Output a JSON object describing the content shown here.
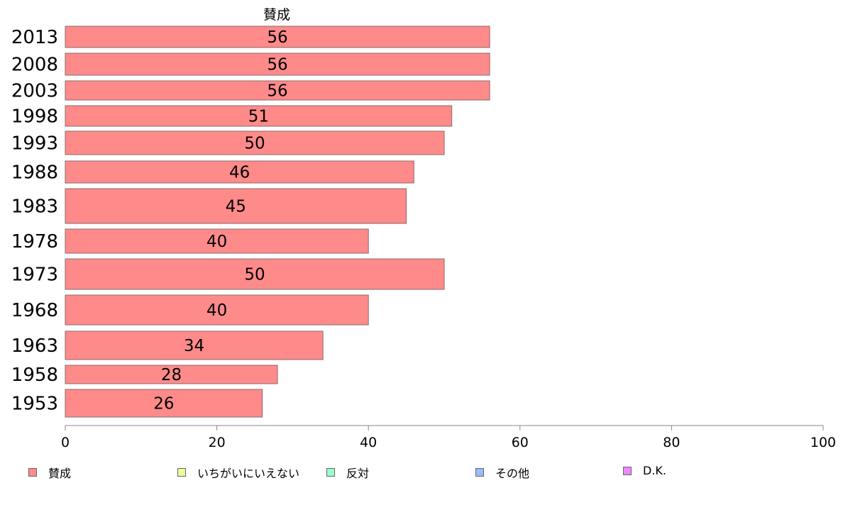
{
  "chart_data": {
    "type": "bar",
    "orientation": "horizontal",
    "title": "賛成",
    "categories": [
      "2013",
      "2008",
      "2003",
      "1998",
      "1993",
      "1988",
      "1983",
      "1978",
      "1973",
      "1968",
      "1963",
      "1958",
      "1953"
    ],
    "series": [
      {
        "name": "賛成",
        "values": [
          56,
          56,
          56,
          51,
          50,
          46,
          45,
          40,
          50,
          40,
          34,
          28,
          26
        ],
        "color": "#ff8a8a"
      }
    ],
    "xlim": [
      0,
      100
    ],
    "xticks": [
      0,
      20,
      40,
      60,
      80,
      100
    ],
    "grid": false,
    "legend_position": "bottom"
  },
  "legend": [
    {
      "label": "賛成",
      "color": "#ff8a8a"
    },
    {
      "label": "いちがいにいえない",
      "color": "#eeff99"
    },
    {
      "label": "反対",
      "color": "#99ffcc"
    },
    {
      "label": "その他",
      "color": "#99bbff"
    },
    {
      "label": "D.K.",
      "color": "#ee88ff"
    }
  ]
}
